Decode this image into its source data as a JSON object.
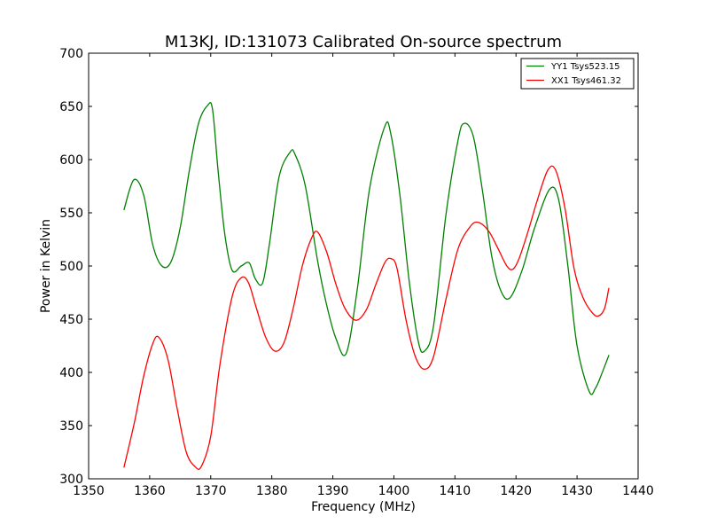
{
  "chart_data": {
    "type": "line",
    "title": "M13KJ, ID:131073 Calibrated On-source spectrum",
    "xlabel": "Frequency (MHz)",
    "ylabel": "Power in Kelvin",
    "xlim": [
      1350,
      1440
    ],
    "ylim": [
      300,
      700
    ],
    "xticks": [
      "1350",
      "1360",
      "1370",
      "1380",
      "1390",
      "1400",
      "1410",
      "1420",
      "1430",
      "1440"
    ],
    "yticks": [
      "300",
      "350",
      "400",
      "450",
      "500",
      "550",
      "600",
      "650",
      "700"
    ],
    "grid": false,
    "legend_position": "top-right",
    "series": [
      {
        "name": "YY1 Tsys523.15",
        "color": "#008000",
        "x": [
          1355.8,
          1357.4,
          1359.0,
          1360.5,
          1362.0,
          1363.5,
          1365.0,
          1366.5,
          1368.0,
          1369.5,
          1370.3,
          1371.2,
          1372.3,
          1373.5,
          1375.0,
          1376.3,
          1377.3,
          1378.5,
          1379.6,
          1381.2,
          1383.0,
          1383.8,
          1385.5,
          1387.5,
          1389.0,
          1390.5,
          1392.2,
          1394.0,
          1396.0,
          1398.5,
          1399.5,
          1401.0,
          1402.5,
          1404.0,
          1405.0,
          1406.5,
          1408.5,
          1410.5,
          1411.5,
          1413.0,
          1414.5,
          1416.0,
          1417.5,
          1419.0,
          1421.0,
          1423.0,
          1425.5,
          1427.0,
          1428.5,
          1430.0,
          1432.0,
          1433.0,
          1434.0,
          1435.2
        ],
        "y": [
          553,
          581,
          567,
          520,
          500,
          504,
          536,
          590,
          634,
          651,
          647,
          590,
          530,
          496,
          500,
          503,
          488,
          484,
          520,
          584,
          607,
          605,
          575,
          505,
          463,
          432,
          418,
          478,
          572,
          631,
          624,
          566,
          486,
          429,
          420,
          444,
          547,
          618,
          634,
          622,
          571,
          510,
          477,
          470,
          496,
          535,
          572,
          562,
          500,
          425,
          382,
          385,
          398,
          416
        ]
      },
      {
        "name": "XX1 Tsys461.32",
        "color": "#ff0000",
        "x": [
          1355.8,
          1357.5,
          1359.0,
          1360.5,
          1361.5,
          1363.0,
          1364.5,
          1366.0,
          1367.5,
          1368.5,
          1370.0,
          1371.5,
          1373.5,
          1375.0,
          1376.2,
          1377.5,
          1379.0,
          1380.5,
          1382.0,
          1383.5,
          1385.0,
          1386.5,
          1387.5,
          1389.0,
          1390.5,
          1392.0,
          1393.8,
          1395.5,
          1397.0,
          1398.5,
          1399.5,
          1400.5,
          1402.0,
          1403.5,
          1405.0,
          1406.5,
          1408.5,
          1410.5,
          1412.5,
          1413.8,
          1415.5,
          1417.0,
          1418.5,
          1419.5,
          1420.5,
          1422.0,
          1423.5,
          1425.2,
          1426.5,
          1428.0,
          1429.5,
          1431.0,
          1432.5,
          1433.5,
          1434.5,
          1435.2
        ],
        "y": [
          311,
          353,
          396,
          427,
          433,
          412,
          366,
          325,
          311,
          312,
          340,
          407,
          471,
          489,
          484,
          460,
          433,
          420,
          428,
          460,
          500,
          526,
          532,
          513,
          483,
          460,
          449,
          459,
          482,
          503,
          507,
          498,
          449,
          415,
          403,
          415,
          468,
          516,
          537,
          541,
          533,
          517,
          500,
          497,
          507,
          533,
          562,
          590,
          590,
          555,
          498,
          470,
          456,
          453,
          460,
          479
        ]
      }
    ]
  }
}
